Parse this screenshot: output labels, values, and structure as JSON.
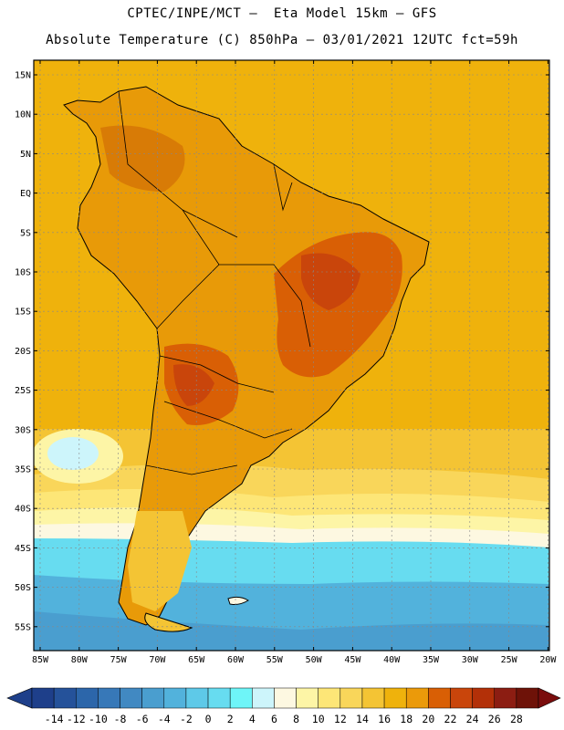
{
  "title_line1": "CPTEC/INPE/MCT –  Eta Model 15km – GFS",
  "title_line2": "Absolute Temperature (C) 850hPa – 03/01/2021 12UTC fct=59h",
  "lat_labels": [
    "15N",
    "10N",
    "5N",
    "EQ",
    "5S",
    "10S",
    "15S",
    "20S",
    "25S",
    "30S",
    "35S",
    "40S",
    "45S",
    "50S",
    "55S"
  ],
  "lon_labels": [
    "85W",
    "80W",
    "75W",
    "70W",
    "65W",
    "60W",
    "55W",
    "50W",
    "45W",
    "40W",
    "35W",
    "30W",
    "25W",
    "20W"
  ],
  "colorbar": {
    "labels": [
      "-14",
      "-12",
      "-10",
      "-8",
      "-6",
      "-4",
      "-2",
      "0",
      "2",
      "4",
      "6",
      "8",
      "10",
      "12",
      "14",
      "16",
      "18",
      "20",
      "22",
      "24",
      "26",
      "28"
    ],
    "colors": [
      "#1e3f8a",
      "#25529a",
      "#2c66aa",
      "#3778b8",
      "#4189c2",
      "#4a9ecf",
      "#52b2dc",
      "#5ec9e8",
      "#67dcf0",
      "#6ef5f8",
      "#cdf5fb",
      "#fdf8e1",
      "#fdf5a6",
      "#fde677",
      "#f9d65a",
      "#f4c434",
      "#efb20c",
      "#eb9a0a",
      "#d95f05",
      "#c9450b",
      "#b33008",
      "#8c1d12",
      "#6e1208"
    ],
    "min_color": "#1e3f8a",
    "max_color": "#7a0d0d"
  },
  "field_colors": {
    "ocean_warm": "#efb20c",
    "ocean_mild": "#f4c434",
    "ocean_cool": "#fde677",
    "ocean_cold": "#67dcf0",
    "land_hot": "#d95f05",
    "land_very_hot": "#c9450b",
    "coast": "#000000"
  }
}
